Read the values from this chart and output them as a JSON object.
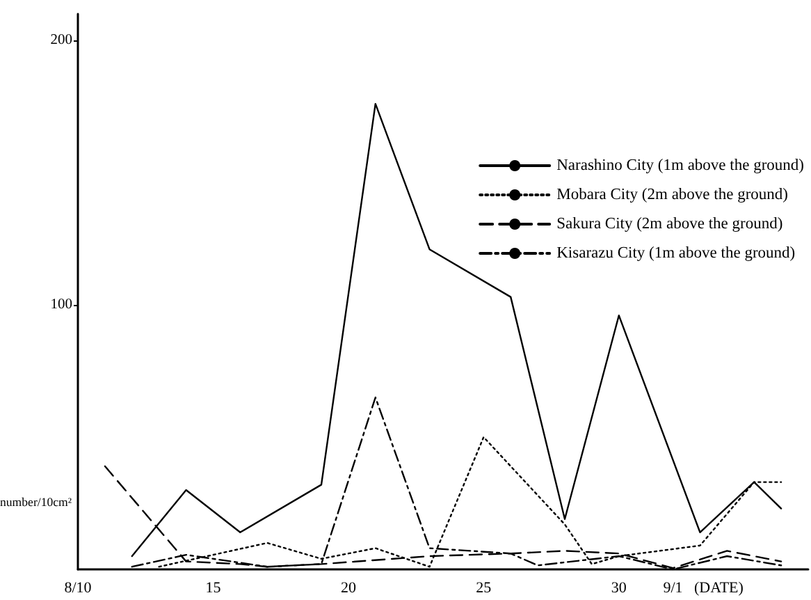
{
  "chart_data": {
    "type": "line",
    "xlabel": "(DATE)",
    "ylabel": "number/10cm²",
    "xlim": [
      "--08-10",
      "--09-06"
    ],
    "xticks": [
      {
        "value": "--08-10",
        "label": "8/10"
      },
      {
        "value": "--08-15",
        "label": "15"
      },
      {
        "value": "--08-20",
        "label": "20"
      },
      {
        "value": "--08-25",
        "label": "25"
      },
      {
        "value": "--08-30",
        "label": "30"
      },
      {
        "value": "--09-01",
        "label": "9/1"
      }
    ],
    "ylim": [
      0,
      210
    ],
    "yticks": [
      100,
      200
    ],
    "grid": false,
    "legend": "top right",
    "marker": "none",
    "series": [
      {
        "name": "Narashino City (1m above the ground)",
        "color": "#000000",
        "line_style": "solid",
        "x": [
          "--08-12",
          "--08-14",
          "--08-16",
          "--08-19",
          "--08-21",
          "--08-23",
          "--08-26",
          "--08-28",
          "--08-30",
          "--09-02",
          "--09-04",
          "--09-05"
        ],
        "values": [
          5,
          30,
          14,
          32,
          176,
          121,
          103,
          19,
          96,
          14,
          33,
          23
        ]
      },
      {
        "name": "Mobara City (2m above the ground)",
        "color": "#000000",
        "line_style": "dotted",
        "x": [
          "--08-13",
          "--08-17",
          "--08-19",
          "--08-21",
          "--08-23",
          "--08-25",
          "--08-28",
          "--08-29",
          "--08-30",
          "--09-02",
          "--09-04",
          "--09-05"
        ],
        "values": [
          1,
          10,
          4,
          8,
          1,
          50,
          17,
          2,
          5,
          9,
          33,
          33
        ]
      },
      {
        "name": "Sakura City (2m above the ground)",
        "color": "#000000",
        "line_style": "dashed",
        "x": [
          "--08-11",
          "--08-14",
          "--08-16",
          "--08-17",
          "--08-19",
          "--08-23",
          "--08-26",
          "--08-28",
          "--08-30",
          "--09-01",
          "--09-03",
          "--09-05"
        ],
        "values": [
          39,
          3,
          2,
          1,
          2,
          5,
          6,
          7,
          6,
          0.5,
          7,
          3
        ]
      },
      {
        "name": "Kisarazu City (1m above the ground)",
        "color": "#000000",
        "line_style": "dashdot",
        "x": [
          "--08-12",
          "--08-14",
          "--08-17",
          "--08-19",
          "--08-21",
          "--08-23",
          "--08-26",
          "--08-27",
          "--08-30",
          "--09-01",
          "--09-03",
          "--09-05"
        ],
        "values": [
          1,
          5.5,
          1,
          2,
          65,
          8,
          6,
          1.5,
          5,
          0,
          5,
          1.5
        ]
      }
    ]
  }
}
